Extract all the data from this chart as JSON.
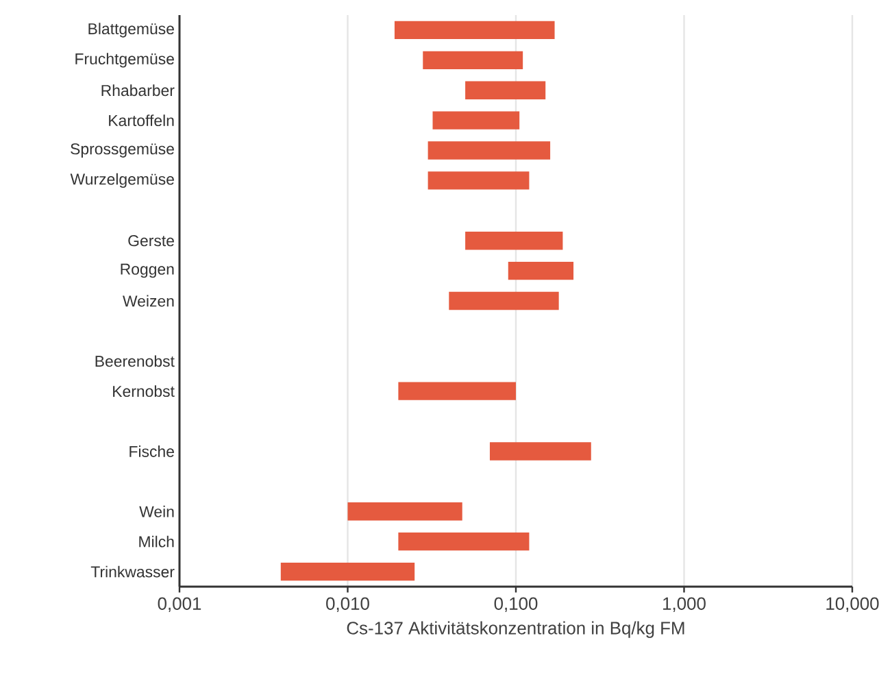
{
  "chart_data": {
    "type": "bar",
    "orientation": "horizontal",
    "log": "x",
    "xlabel": "Cs-137 Aktivitätskonzentration in Bq/kg FM",
    "categories": [
      "Blattgemüse",
      "Fruchtgemüse",
      "Rhabarber",
      "Kartoffeln",
      "Sprossgemüse",
      "Wurzelgemüse",
      null,
      "Gerste",
      "Roggen",
      "Weizen",
      null,
      "Beerenobst",
      "Kernobst",
      null,
      "Fische",
      null,
      "Wein",
      "Milch",
      "Trinkwasser"
    ],
    "base": [
      0.019,
      0.028,
      0.05,
      0.032,
      0.03,
      0.03,
      null,
      0.05,
      0.09,
      0.04,
      null,
      null,
      0.02,
      null,
      0.07,
      null,
      0.01,
      0.02,
      0.004
    ],
    "values": [
      0.151,
      0.082,
      0.1,
      0.073,
      0.13,
      0.09,
      null,
      0.14,
      0.13,
      0.14,
      null,
      null,
      0.08,
      null,
      0.21,
      null,
      0.038,
      0.1,
      0.021
    ],
    "color": "#e55a3f",
    "xlim": [
      0.001,
      10
    ],
    "xticks": [
      {
        "value": 0.001,
        "label": "0,001"
      },
      {
        "value": 0.01,
        "label": "0,010"
      },
      {
        "value": 0.1,
        "label": "0,100"
      },
      {
        "value": 1,
        "label": "1,000"
      },
      {
        "value": 10,
        "label": "10,000"
      }
    ],
    "grid": "x"
  }
}
